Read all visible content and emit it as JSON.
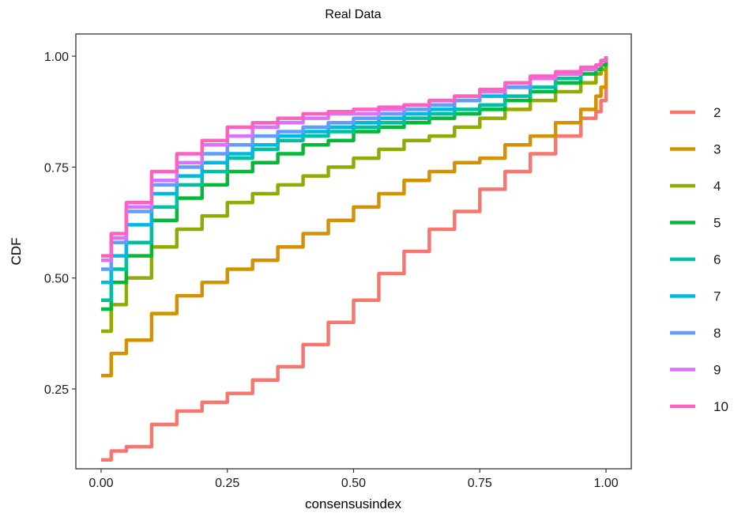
{
  "chart_data": {
    "type": "line",
    "title": "Real Data",
    "xlabel": "consensusindex",
    "ylabel": "CDF",
    "xlim": [
      -0.05,
      1.05
    ],
    "ylim": [
      0.07,
      1.05
    ],
    "x_ticks": [
      {
        "value": 0.0,
        "label": "0.00"
      },
      {
        "value": 0.25,
        "label": "0.25"
      },
      {
        "value": 0.5,
        "label": "0.50"
      },
      {
        "value": 0.75,
        "label": "0.75"
      },
      {
        "value": 1.0,
        "label": "1.00"
      }
    ],
    "y_ticks": [
      {
        "value": 0.25,
        "label": "0.25"
      },
      {
        "value": 0.5,
        "label": "0.50"
      },
      {
        "value": 0.75,
        "label": "0.75"
      },
      {
        "value": 1.0,
        "label": "1.00"
      }
    ],
    "grid": false,
    "legend_position": "right",
    "x": [
      0.0,
      0.01,
      0.02,
      0.05,
      0.1,
      0.15,
      0.2,
      0.25,
      0.3,
      0.35,
      0.4,
      0.45,
      0.5,
      0.55,
      0.6,
      0.65,
      0.7,
      0.75,
      0.8,
      0.85,
      0.9,
      0.95,
      0.98,
      0.99,
      1.0
    ],
    "series": [
      {
        "name": "2",
        "color": "#F8766D",
        "values": [
          0.09,
          0.09,
          0.11,
          0.12,
          0.17,
          0.2,
          0.22,
          0.24,
          0.27,
          0.3,
          0.35,
          0.4,
          0.45,
          0.51,
          0.56,
          0.61,
          0.65,
          0.7,
          0.74,
          0.78,
          0.82,
          0.86,
          0.875,
          0.9,
          1.0
        ]
      },
      {
        "name": "3",
        "color": "#D39200",
        "values": [
          0.28,
          0.28,
          0.33,
          0.36,
          0.42,
          0.46,
          0.49,
          0.52,
          0.54,
          0.57,
          0.6,
          0.63,
          0.66,
          0.69,
          0.72,
          0.74,
          0.76,
          0.77,
          0.8,
          0.82,
          0.85,
          0.88,
          0.91,
          0.93,
          1.0
        ]
      },
      {
        "name": "4",
        "color": "#93AA00",
        "values": [
          0.38,
          0.38,
          0.44,
          0.5,
          0.57,
          0.61,
          0.64,
          0.67,
          0.69,
          0.71,
          0.73,
          0.75,
          0.77,
          0.79,
          0.81,
          0.82,
          0.84,
          0.86,
          0.88,
          0.9,
          0.92,
          0.94,
          0.96,
          0.97,
          1.0
        ]
      },
      {
        "name": "5",
        "color": "#00BA38",
        "values": [
          0.43,
          0.43,
          0.49,
          0.55,
          0.63,
          0.68,
          0.71,
          0.74,
          0.76,
          0.78,
          0.8,
          0.81,
          0.83,
          0.84,
          0.85,
          0.86,
          0.87,
          0.88,
          0.9,
          0.92,
          0.94,
          0.96,
          0.97,
          0.98,
          1.0
        ]
      },
      {
        "name": "6",
        "color": "#00C19F",
        "values": [
          0.45,
          0.45,
          0.52,
          0.58,
          0.66,
          0.71,
          0.74,
          0.77,
          0.79,
          0.81,
          0.82,
          0.83,
          0.84,
          0.85,
          0.86,
          0.87,
          0.88,
          0.89,
          0.91,
          0.93,
          0.95,
          0.97,
          0.98,
          0.99,
          1.0
        ]
      },
      {
        "name": "7",
        "color": "#00B9E3",
        "values": [
          0.49,
          0.49,
          0.55,
          0.62,
          0.69,
          0.73,
          0.76,
          0.78,
          0.8,
          0.82,
          0.83,
          0.84,
          0.85,
          0.86,
          0.87,
          0.88,
          0.9,
          0.91,
          0.93,
          0.95,
          0.96,
          0.97,
          0.98,
          0.99,
          1.0
        ]
      },
      {
        "name": "8",
        "color": "#619CFF",
        "values": [
          0.52,
          0.52,
          0.58,
          0.65,
          0.71,
          0.75,
          0.78,
          0.8,
          0.82,
          0.83,
          0.84,
          0.85,
          0.86,
          0.87,
          0.88,
          0.89,
          0.9,
          0.92,
          0.93,
          0.95,
          0.96,
          0.97,
          0.98,
          0.99,
          1.0
        ]
      },
      {
        "name": "9",
        "color": "#DB72FB",
        "values": [
          0.54,
          0.54,
          0.59,
          0.66,
          0.72,
          0.76,
          0.8,
          0.82,
          0.84,
          0.85,
          0.86,
          0.87,
          0.87,
          0.88,
          0.89,
          0.9,
          0.91,
          0.92,
          0.94,
          0.95,
          0.96,
          0.97,
          0.98,
          0.99,
          1.0
        ]
      },
      {
        "name": "10",
        "color": "#FF61C3",
        "values": [
          0.55,
          0.55,
          0.6,
          0.67,
          0.74,
          0.78,
          0.81,
          0.84,
          0.85,
          0.86,
          0.87,
          0.875,
          0.88,
          0.885,
          0.89,
          0.9,
          0.91,
          0.925,
          0.94,
          0.955,
          0.965,
          0.975,
          0.98,
          0.99,
          1.0
        ]
      }
    ]
  }
}
